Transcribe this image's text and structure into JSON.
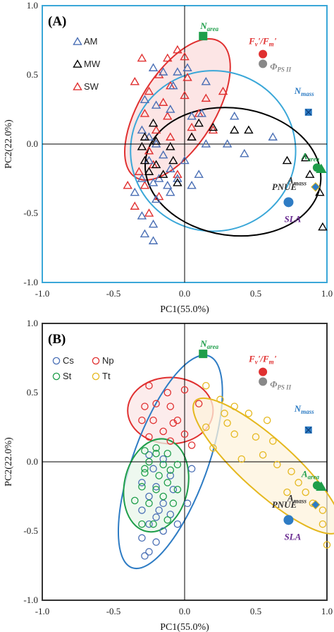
{
  "chart_data": [
    {
      "type": "scatter",
      "panel_label": "(A)",
      "xlabel": "PC1(55.0%)",
      "ylabel": "PC2(22.0%)",
      "xlim": [
        -1.0,
        1.0
      ],
      "ylim": [
        -1.0,
        1.0
      ],
      "xticks": [
        "-1.0",
        "-0.5",
        "0.0",
        "0.5",
        "1.0"
      ],
      "yticks": [
        "-1.0",
        "-0.5",
        "0.0",
        "0.5",
        "1.0"
      ],
      "frame_color": "#3aa7d8",
      "legend": [
        {
          "label": "AM",
          "color": "#4a6fb5"
        },
        {
          "label": "MW",
          "color": "#000000"
        },
        {
          "label": "SW",
          "color": "#e03030"
        }
      ],
      "series": [
        {
          "name": "SW",
          "color": "#e03030",
          "marker": "triangle",
          "points": [
            [
              -0.3,
              0.62
            ],
            [
              -0.12,
              0.62
            ],
            [
              -0.05,
              0.68
            ],
            [
              0.0,
              0.63
            ],
            [
              -0.18,
              0.5
            ],
            [
              0.02,
              0.48
            ],
            [
              -0.35,
              0.45
            ],
            [
              -0.1,
              0.42
            ],
            [
              -0.25,
              0.38
            ],
            [
              0.0,
              0.35
            ],
            [
              0.15,
              0.33
            ],
            [
              -0.15,
              0.3
            ],
            [
              0.27,
              0.38
            ],
            [
              0.1,
              0.22
            ],
            [
              -0.28,
              0.22
            ],
            [
              0.05,
              0.12
            ],
            [
              -0.2,
              0.1
            ],
            [
              -0.1,
              0.05
            ],
            [
              -0.25,
              -0.05
            ],
            [
              -0.22,
              -0.15
            ],
            [
              -0.32,
              -0.2
            ],
            [
              -0.28,
              -0.3
            ],
            [
              -0.18,
              -0.38
            ],
            [
              -0.35,
              -0.45
            ],
            [
              -0.25,
              -0.5
            ],
            [
              0.05,
              0.05
            ],
            [
              -0.05,
              -0.22
            ],
            [
              -0.12,
              0.2
            ],
            [
              0.2,
              0.1
            ],
            [
              -0.4,
              -0.3
            ]
          ]
        },
        {
          "name": "AM",
          "color": "#4a6fb5",
          "marker": "triangle",
          "points": [
            [
              -0.22,
              0.55
            ],
            [
              -0.15,
              0.52
            ],
            [
              -0.05,
              0.52
            ],
            [
              0.02,
              0.55
            ],
            [
              -0.28,
              0.32
            ],
            [
              -0.2,
              0.28
            ],
            [
              -0.1,
              0.25
            ],
            [
              0.05,
              0.2
            ],
            [
              0.12,
              0.22
            ],
            [
              -0.3,
              0.1
            ],
            [
              -0.2,
              0.0
            ],
            [
              -0.15,
              -0.08
            ],
            [
              -0.25,
              -0.12
            ],
            [
              -0.1,
              -0.18
            ],
            [
              -0.3,
              -0.25
            ],
            [
              -0.22,
              -0.28
            ],
            [
              -0.12,
              -0.3
            ],
            [
              -0.35,
              -0.35
            ],
            [
              -0.2,
              -0.4
            ],
            [
              -0.1,
              -0.35
            ],
            [
              -0.3,
              -0.52
            ],
            [
              -0.22,
              -0.58
            ],
            [
              -0.28,
              -0.65
            ],
            [
              -0.22,
              -0.7
            ],
            [
              0.05,
              -0.3
            ],
            [
              0.0,
              -0.12
            ],
            [
              0.15,
              0.0
            ],
            [
              0.3,
              0.0
            ],
            [
              0.1,
              -0.22
            ],
            [
              -0.05,
              -0.25
            ],
            [
              -0.25,
              0.05
            ],
            [
              -0.18,
              -0.25
            ],
            [
              0.62,
              0.05
            ],
            [
              0.35,
              0.2
            ],
            [
              0.42,
              -0.07
            ],
            [
              -0.08,
              0.42
            ],
            [
              0.15,
              0.45
            ]
          ]
        },
        {
          "name": "MW",
          "color": "#000000",
          "marker": "triangle",
          "points": [
            [
              -0.22,
              0.15
            ],
            [
              0.1,
              0.15
            ],
            [
              0.2,
              0.12
            ],
            [
              0.35,
              0.1
            ],
            [
              0.45,
              0.1
            ],
            [
              -0.28,
              0.05
            ],
            [
              0.05,
              0.05
            ],
            [
              -0.2,
              0.02
            ],
            [
              -0.1,
              -0.02
            ],
            [
              -0.28,
              -0.12
            ],
            [
              -0.2,
              -0.15
            ],
            [
              -0.08,
              -0.12
            ],
            [
              -0.25,
              -0.2
            ],
            [
              -0.15,
              -0.22
            ],
            [
              -0.05,
              -0.28
            ],
            [
              0.72,
              -0.12
            ],
            [
              0.85,
              -0.1
            ],
            [
              0.88,
              -0.22
            ],
            [
              0.95,
              -0.35
            ],
            [
              0.97,
              -0.6
            ],
            [
              -0.3,
              -0.02
            ]
          ]
        }
      ],
      "ellipses": [
        {
          "color": "#e03030",
          "fill": "#fbdcdc",
          "cx": -0.05,
          "cy": 0.25,
          "rx": 0.56,
          "ry": 0.27,
          "angle": 58
        },
        {
          "color": "#3aa7d8",
          "fill": "none",
          "cx": 0.2,
          "cy": -0.05,
          "rx": 0.58,
          "ry": 0.58,
          "angle": 0
        },
        {
          "color": "#000000",
          "fill": "none",
          "cx": 0.34,
          "cy": -0.2,
          "rx": 0.62,
          "ry": 0.46,
          "angle": -8
        }
      ],
      "loadings": [
        {
          "name": "N",
          "sub": "area",
          "x": 0.13,
          "y": 0.78,
          "color": "#1e9e4a",
          "shape": "square",
          "label_dx": -4,
          "label_dy": -10
        },
        {
          "name": "F",
          "sub": "v",
          "suffix": "'/F",
          "sub2": "m",
          "suffix2": "'",
          "x": 0.55,
          "y": 0.65,
          "color": "#e03030",
          "shape": "circle",
          "label_dx": -20,
          "label_dy": -14
        },
        {
          "name": "Φ",
          "sub": "PS II",
          "x": 0.55,
          "y": 0.58,
          "color": "#888888",
          "shape": "circle",
          "label_dx": 10,
          "label_dy": 8
        },
        {
          "name": "N",
          "sub": "mass",
          "x": 0.87,
          "y": 0.23,
          "color": "#2e7cc4",
          "shape": "square-x",
          "label_dx": -20,
          "label_dy": -26
        },
        {
          "name": "A",
          "sub": "area",
          "x": 0.96,
          "y": -0.18,
          "color": "#1e9e4a",
          "shape": "triangle",
          "label_dx": -28,
          "label_dy": -14
        },
        {
          "name": "A",
          "sub": "mass",
          "x": 0.93,
          "y": -0.17,
          "color": "#1e9e4a",
          "shape": "circle",
          "label_dx": -42,
          "label_dy": 22,
          "label_color": "#333333",
          "label_italic": false
        },
        {
          "name": "PNUE",
          "sub": "",
          "x": 0.92,
          "y": -0.31,
          "color": "#2e7cc4",
          "shape": "diamond",
          "label_dx": -62,
          "label_dy": 4,
          "label_color": "#333333"
        },
        {
          "name": "SLA",
          "sub": "",
          "x": 0.73,
          "y": -0.42,
          "color": "#2e7cc4",
          "shape": "circle",
          "label_dx": -6,
          "label_dy": 28,
          "label_color": "#6a2c91"
        }
      ]
    },
    {
      "type": "scatter",
      "panel_label": "(B)",
      "xlabel": "PC1(55.0%)",
      "ylabel": "PC2(22.0%)",
      "xlim": [
        -1.0,
        1.0
      ],
      "ylim": [
        -1.0,
        1.0
      ],
      "xticks": [
        "-1.0",
        "-0.5",
        "0.0",
        "0.5",
        "1.0"
      ],
      "yticks": [
        "-1.0",
        "-0.5",
        "0.0",
        "0.5",
        "1.0"
      ],
      "frame_color": "#333333",
      "legend": [
        {
          "label": "Cs",
          "color": "#4a6fb5"
        },
        {
          "label": "Np",
          "color": "#e03030"
        },
        {
          "label": "St",
          "color": "#1e9e4a"
        },
        {
          "label": "Tt",
          "color": "#e5b81f"
        }
      ],
      "series": [
        {
          "name": "Np",
          "color": "#e03030",
          "marker": "circle",
          "points": [
            [
              -0.25,
              0.55
            ],
            [
              -0.12,
              0.5
            ],
            [
              0.0,
              0.52
            ],
            [
              -0.2,
              0.42
            ],
            [
              -0.1,
              0.4
            ],
            [
              -0.05,
              0.3
            ],
            [
              -0.22,
              0.3
            ],
            [
              -0.15,
              0.22
            ],
            [
              0.0,
              0.2
            ],
            [
              0.05,
              0.12
            ],
            [
              -0.25,
              0.18
            ],
            [
              -0.28,
              0.4
            ],
            [
              0.1,
              0.42
            ],
            [
              -0.08,
              0.28
            ],
            [
              -0.3,
              0.3
            ],
            [
              -0.1,
              0.15
            ]
          ]
        },
        {
          "name": "Cs",
          "color": "#4a6fb5",
          "marker": "circle",
          "points": [
            [
              -0.25,
              0.05
            ],
            [
              -0.15,
              0.02
            ],
            [
              -0.22,
              -0.05
            ],
            [
              -0.1,
              -0.1
            ],
            [
              -0.3,
              -0.15
            ],
            [
              -0.2,
              -0.18
            ],
            [
              -0.08,
              -0.2
            ],
            [
              -0.25,
              -0.25
            ],
            [
              -0.15,
              -0.3
            ],
            [
              -0.3,
              -0.35
            ],
            [
              -0.2,
              -0.4
            ],
            [
              -0.1,
              -0.38
            ],
            [
              -0.25,
              -0.45
            ],
            [
              -0.15,
              -0.5
            ],
            [
              -0.3,
              -0.55
            ],
            [
              -0.2,
              -0.58
            ],
            [
              -0.25,
              -0.65
            ],
            [
              -0.28,
              -0.68
            ],
            [
              -0.05,
              -0.45
            ],
            [
              0.02,
              -0.3
            ],
            [
              0.05,
              -0.05
            ],
            [
              -0.18,
              -0.35
            ]
          ]
        },
        {
          "name": "St",
          "color": "#1e9e4a",
          "marker": "circle",
          "points": [
            [
              -0.28,
              0.08
            ],
            [
              -0.2,
              0.06
            ],
            [
              -0.12,
              0.06
            ],
            [
              -0.25,
              0.0
            ],
            [
              -0.15,
              -0.02
            ],
            [
              -0.05,
              -0.02
            ],
            [
              -0.28,
              -0.08
            ],
            [
              -0.18,
              -0.1
            ],
            [
              -0.1,
              -0.06
            ],
            [
              -0.3,
              -0.18
            ],
            [
              -0.2,
              -0.2
            ],
            [
              -0.12,
              -0.15
            ],
            [
              -0.25,
              -0.3
            ],
            [
              -0.15,
              -0.25
            ],
            [
              -0.05,
              -0.2
            ],
            [
              -0.3,
              -0.45
            ],
            [
              -0.22,
              -0.45
            ],
            [
              -0.12,
              -0.42
            ],
            [
              -0.28,
              -0.05
            ],
            [
              -0.08,
              -0.3
            ],
            [
              -0.2,
              0.1
            ],
            [
              -0.35,
              -0.28
            ]
          ]
        },
        {
          "name": "Tt",
          "color": "#e5b81f",
          "marker": "circle",
          "points": [
            [
              0.15,
              0.55
            ],
            [
              0.25,
              0.45
            ],
            [
              0.35,
              0.4
            ],
            [
              0.45,
              0.35
            ],
            [
              0.28,
              0.35
            ],
            [
              0.15,
              0.25
            ],
            [
              0.35,
              0.2
            ],
            [
              0.5,
              0.18
            ],
            [
              0.62,
              0.15
            ],
            [
              0.55,
              0.05
            ],
            [
              0.4,
              0.02
            ],
            [
              0.65,
              -0.02
            ],
            [
              0.75,
              -0.07
            ],
            [
              0.8,
              -0.15
            ],
            [
              0.72,
              -0.22
            ],
            [
              0.85,
              -0.22
            ],
            [
              0.9,
              -0.3
            ],
            [
              0.97,
              -0.35
            ],
            [
              0.97,
              -0.45
            ],
            [
              1.0,
              -0.6
            ],
            [
              0.2,
              0.1
            ],
            [
              0.3,
              0.28
            ],
            [
              0.58,
              0.3
            ]
          ]
        }
      ],
      "ellipses": [
        {
          "color": "#e03030",
          "fill": "#fbe5e5",
          "cx": -0.1,
          "cy": 0.37,
          "rx": 0.3,
          "ry": 0.24,
          "angle": 0
        },
        {
          "color": "#2e7cc4",
          "fill": "none",
          "cx": -0.1,
          "cy": 0.0,
          "rx": 0.79,
          "ry": 0.27,
          "angle": 70
        },
        {
          "color": "#1e9e4a",
          "fill": "#e8f6ea",
          "cx": -0.2,
          "cy": -0.17,
          "rx": 0.33,
          "ry": 0.23,
          "angle": 78
        },
        {
          "color": "#e5b81f",
          "fill": "#fdf3dc",
          "cx": 0.58,
          "cy": -0.03,
          "rx": 0.68,
          "ry": 0.19,
          "angle": -42
        }
      ],
      "loadings": [
        {
          "name": "N",
          "sub": "area",
          "x": 0.13,
          "y": 0.78,
          "color": "#1e9e4a",
          "shape": "square",
          "label_dx": -4,
          "label_dy": -10
        },
        {
          "name": "F",
          "sub": "v",
          "suffix": "'/F",
          "sub2": "m",
          "suffix2": "'",
          "x": 0.55,
          "y": 0.65,
          "color": "#e03030",
          "shape": "circle",
          "label_dx": -20,
          "label_dy": -14
        },
        {
          "name": "Φ",
          "sub": "PS II",
          "x": 0.55,
          "y": 0.58,
          "color": "#888888",
          "shape": "circle",
          "label_dx": 10,
          "label_dy": 8
        },
        {
          "name": "N",
          "sub": "mass",
          "x": 0.87,
          "y": 0.23,
          "color": "#2e7cc4",
          "shape": "square-x",
          "label_dx": -20,
          "label_dy": -26
        },
        {
          "name": "A",
          "sub": "area",
          "x": 0.96,
          "y": -0.18,
          "color": "#1e9e4a",
          "shape": "triangle",
          "label_dx": -28,
          "label_dy": -14
        },
        {
          "name": "A",
          "sub": "mass",
          "x": 0.93,
          "y": -0.17,
          "color": "#1e9e4a",
          "shape": "circle",
          "label_dx": -42,
          "label_dy": 22,
          "label_color": "#333333",
          "label_italic": false
        },
        {
          "name": "PNUE",
          "sub": "",
          "x": 0.92,
          "y": -0.31,
          "color": "#2e7cc4",
          "shape": "diamond",
          "label_dx": -62,
          "label_dy": 4,
          "label_color": "#333333"
        },
        {
          "name": "SLA",
          "sub": "",
          "x": 0.73,
          "y": -0.42,
          "color": "#2e7cc4",
          "shape": "circle",
          "label_dx": -6,
          "label_dy": 28,
          "label_color": "#6a2c91"
        }
      ]
    }
  ]
}
